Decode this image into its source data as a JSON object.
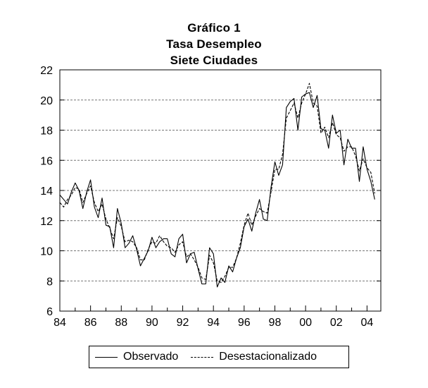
{
  "chart_data": {
    "type": "line",
    "title": "Gráfico 1",
    "subtitle_lines": [
      "Tasa Desempleo",
      "Siete Ciudades"
    ],
    "xlabel": "",
    "ylabel": "",
    "xlim": [
      1984,
      2004.9
    ],
    "ylim": [
      6,
      22
    ],
    "y_ticks": [
      6,
      8,
      10,
      12,
      14,
      16,
      18,
      20,
      22
    ],
    "x_ticks": [
      {
        "value": 1984,
        "label": "84"
      },
      {
        "value": 1986,
        "label": "86"
      },
      {
        "value": 1988,
        "label": "88"
      },
      {
        "value": 1990,
        "label": "90"
      },
      {
        "value": 1992,
        "label": "92"
      },
      {
        "value": 1994,
        "label": "94"
      },
      {
        "value": 1996,
        "label": "96"
      },
      {
        "value": 1998,
        "label": "98"
      },
      {
        "value": 2000,
        "label": "00"
      },
      {
        "value": 2002,
        "label": "02"
      },
      {
        "value": 2004,
        "label": "04"
      }
    ],
    "grid": "horizontal dashed",
    "legend_position": "bottom",
    "x_start": 1984.0,
    "x_step": 0.25,
    "series": [
      {
        "name": "Observado",
        "style": "solid",
        "values": [
          13.7,
          13.4,
          13.1,
          13.9,
          14.5,
          14.0,
          12.8,
          13.9,
          14.7,
          12.9,
          12.2,
          13.5,
          11.7,
          11.6,
          10.2,
          12.8,
          11.8,
          10.2,
          10.5,
          11.0,
          10.1,
          9.0,
          9.5,
          10.0,
          10.9,
          10.2,
          10.6,
          10.8,
          10.8,
          9.8,
          9.6,
          10.8,
          11.1,
          9.2,
          9.8,
          9.9,
          8.8,
          7.8,
          7.8,
          10.2,
          9.8,
          7.6,
          8.2,
          7.9,
          9.0,
          8.6,
          9.5,
          10.2,
          11.6,
          12.1,
          11.3,
          12.5,
          13.4,
          12.1,
          12.0,
          14.2,
          15.9,
          15.0,
          15.7,
          19.5,
          19.9,
          20.1,
          18.0,
          20.2,
          20.4,
          20.5,
          19.5,
          20.3,
          18.1,
          18.0,
          16.8,
          19.0,
          17.8,
          18.0,
          15.7,
          17.4,
          16.8,
          16.8,
          14.6,
          16.9,
          15.4,
          14.6,
          13.4
        ]
      },
      {
        "name": "Desestacionalizado",
        "style": "dashed",
        "values": [
          13.2,
          12.9,
          13.4,
          13.7,
          14.2,
          14.1,
          13.2,
          13.8,
          14.3,
          13.2,
          12.6,
          13.1,
          12.1,
          11.5,
          10.8,
          12.2,
          11.6,
          10.6,
          10.7,
          10.6,
          10.2,
          9.4,
          9.4,
          10.1,
          10.6,
          10.5,
          11.0,
          10.6,
          10.3,
          10.2,
          9.9,
          10.4,
          10.6,
          9.6,
          9.8,
          9.4,
          8.9,
          8.2,
          8.1,
          9.7,
          9.2,
          8.0,
          7.9,
          8.3,
          8.9,
          8.9,
          9.5,
          10.5,
          11.7,
          12.5,
          11.7,
          12.3,
          12.8,
          12.6,
          12.5,
          13.9,
          15.4,
          15.4,
          16.4,
          18.8,
          19.3,
          19.8,
          18.8,
          19.8,
          20.4,
          21.1,
          19.8,
          19.6,
          17.8,
          18.2,
          17.5,
          18.5,
          17.7,
          17.5,
          16.6,
          16.9,
          16.9,
          16.3,
          15.3,
          16.1,
          15.5,
          15.2,
          13.8
        ]
      }
    ]
  }
}
